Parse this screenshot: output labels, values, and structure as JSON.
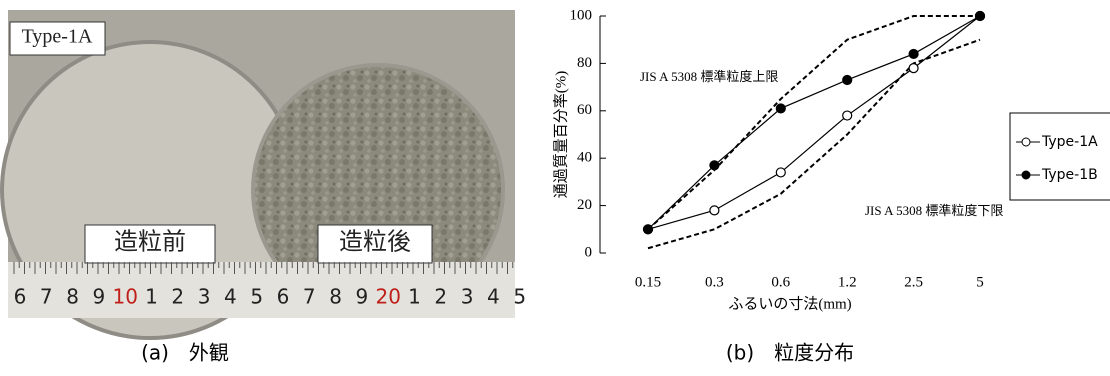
{
  "photo": {
    "labels": [
      "Type-1A",
      "造粒前",
      "造粒後"
    ],
    "ruler": [
      "6",
      "7",
      "8",
      "9",
      "10",
      "1",
      "2",
      "3",
      "4",
      "5",
      "6",
      "7",
      "8",
      "9",
      "20",
      "1",
      "2",
      "3",
      "4",
      "5"
    ],
    "caption": "(a)　外観"
  },
  "chart_data": {
    "type": "line",
    "caption": "(b)　粒度分布",
    "x_label": "ふるいの寸法(mm)",
    "y_label": "通過質量百分率(%)",
    "categories": [
      "0.15",
      "0.3",
      "0.6",
      "1.2",
      "2.5",
      "5"
    ],
    "series": [
      {
        "name": "Type-1A",
        "color": "#000000",
        "marker": "open",
        "values": [
          10,
          18,
          34,
          58,
          78,
          100
        ]
      },
      {
        "name": "Type-1B",
        "color": "#000000",
        "marker": "filled",
        "values": [
          10,
          37,
          61,
          73,
          84,
          100
        ]
      }
    ],
    "limits": [
      {
        "label": "JIS A 5308 標準粒度上限",
        "values": [
          10,
          35,
          65,
          90,
          100,
          100
        ]
      },
      {
        "label": "JIS A 5308 標準粒度下限",
        "values": [
          2,
          10,
          25,
          50,
          80,
          90
        ]
      }
    ],
    "ylim": [
      0,
      100
    ],
    "yticks": [
      0,
      20,
      40,
      60,
      80,
      100
    ],
    "legend": "right"
  }
}
